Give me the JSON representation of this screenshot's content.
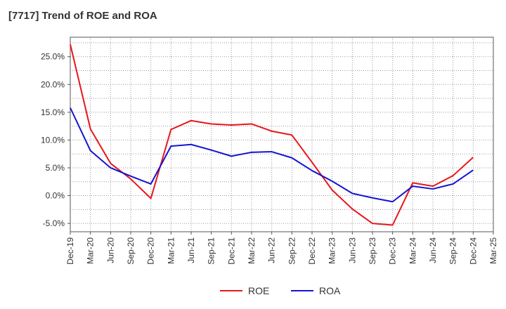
{
  "title": "[7717]  Trend of ROE and ROA",
  "chart_data": {
    "type": "line",
    "title": "[7717]  Trend of ROE and ROA",
    "xlabel": "",
    "ylabel": "",
    "x_tick_labels": [
      "Dec-19",
      "Mar-20",
      "Jun-20",
      "Sep-20",
      "Dec-20",
      "Mar-21",
      "Jun-21",
      "Sep-21",
      "Dec-21",
      "Mar-22",
      "Jun-22",
      "Sep-22",
      "Dec-22",
      "Mar-23",
      "Jun-23",
      "Sep-23",
      "Dec-23",
      "Mar-24",
      "Jun-24",
      "Sep-24",
      "Dec-24",
      "Mar-25"
    ],
    "y_tick_labels": [
      "-5.0%",
      "0.0%",
      "5.0%",
      "10.0%",
      "15.0%",
      "20.0%",
      "25.0%"
    ],
    "y_ticks": [
      -5,
      0,
      5,
      10,
      15,
      20,
      25
    ],
    "ylim": [
      -6.5,
      28.5
    ],
    "grid": true,
    "legend_position": "bottom-center",
    "x": [
      "Dec-19",
      "Mar-20",
      "Jun-20",
      "Sep-20",
      "Dec-20",
      "Mar-21",
      "Jun-21",
      "Sep-21",
      "Dec-21",
      "Mar-22",
      "Jun-22",
      "Sep-22",
      "Dec-22",
      "Mar-23",
      "Jun-23",
      "Sep-23",
      "Dec-23",
      "Mar-24",
      "Jun-24",
      "Sep-24",
      "Dec-24"
    ],
    "series": [
      {
        "name": "ROE",
        "color": "#e8161b",
        "values": [
          27.2,
          12.0,
          5.8,
          3.0,
          -0.5,
          11.9,
          13.5,
          12.9,
          12.7,
          12.9,
          11.6,
          10.9,
          6.0,
          1.0,
          -2.4,
          -5.0,
          -5.3,
          2.3,
          1.7,
          3.6,
          6.9
        ]
      },
      {
        "name": "ROA",
        "color": "#1414d2",
        "values": [
          15.8,
          8.1,
          5.0,
          3.5,
          2.1,
          8.9,
          9.2,
          8.2,
          7.1,
          7.8,
          7.9,
          6.8,
          4.5,
          2.6,
          0.4,
          -0.4,
          -1.1,
          1.7,
          1.2,
          2.1,
          4.6
        ]
      }
    ]
  }
}
